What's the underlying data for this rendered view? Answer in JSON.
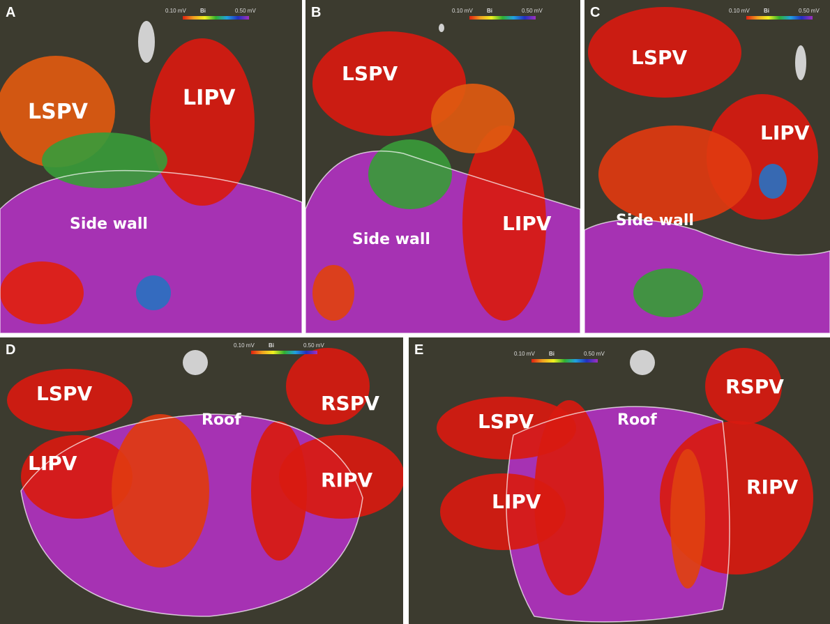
{
  "panels": [
    {
      "letter": "A",
      "scale": {
        "min": "0.10 mV",
        "name": "Bi",
        "max": "0.50 mV"
      },
      "labels": [
        "LSPV",
        "LIPV",
        "Side wall"
      ]
    },
    {
      "letter": "B",
      "scale": {
        "min": "0.10 mV",
        "name": "Bi",
        "max": "0.50 mV"
      },
      "labels": [
        "LSPV",
        "LIPV",
        "Side wall"
      ]
    },
    {
      "letter": "C",
      "scale": {
        "min": "0.10 mV",
        "name": "Bi",
        "max": "0.50 mV"
      },
      "labels": [
        "LSPV",
        "LIPV",
        "Side wall"
      ]
    },
    {
      "letter": "D",
      "scale": {
        "min": "0.10 mV",
        "name": "Bi",
        "max": "0.50 mV"
      },
      "labels": [
        "LSPV",
        "LIPV",
        "Roof",
        "RSPV",
        "RIPV"
      ]
    },
    {
      "letter": "E",
      "scale": {
        "min": "0.10 mV",
        "name": "Bi",
        "max": "0.50 mV"
      },
      "labels": [
        "LSPV",
        "LIPV",
        "Roof",
        "RSPV",
        "RIPV"
      ]
    }
  ]
}
